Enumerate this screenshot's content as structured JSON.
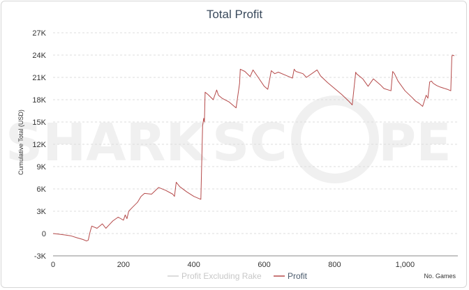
{
  "chart_data": {
    "type": "line",
    "title": "Total Profit",
    "xlabel": "No. Games",
    "ylabel": "Cumulative Total (USD)",
    "xlim": [
      0,
      1150
    ],
    "ylim": [
      -3000,
      27000
    ],
    "x_ticks": [
      0,
      200,
      400,
      600,
      800,
      1000
    ],
    "x_tick_labels": [
      "0",
      "200",
      "400",
      "600",
      "800",
      "1,000"
    ],
    "y_ticks": [
      -3000,
      0,
      3000,
      6000,
      9000,
      12000,
      15000,
      18000,
      21000,
      24000,
      27000
    ],
    "y_tick_labels": [
      "-3K",
      "0",
      "3K",
      "6K",
      "9K",
      "12K",
      "15K",
      "18K",
      "21K",
      "24K",
      "27K"
    ],
    "grid": true,
    "legend_position": "bottom-center",
    "watermark": "SHARKSCOPE",
    "series": [
      {
        "name": "Profit Excluding Rake",
        "color": "#d0d0d0",
        "x": [],
        "y": []
      },
      {
        "name": "Profit",
        "color": "#b54a4a",
        "x": [
          0,
          20,
          35,
          50,
          70,
          85,
          95,
          100,
          105,
          110,
          125,
          140,
          150,
          160,
          170,
          185,
          200,
          205,
          210,
          215,
          225,
          240,
          250,
          260,
          280,
          300,
          320,
          340,
          345,
          350,
          360,
          380,
          400,
          415,
          420,
          425,
          428,
          430,
          432,
          440,
          455,
          465,
          470,
          480,
          500,
          515,
          520,
          530,
          532,
          545,
          560,
          568,
          580,
          600,
          610,
          620,
          630,
          640,
          660,
          680,
          685,
          690,
          710,
          720,
          750,
          760,
          780,
          800,
          820,
          840,
          850,
          860,
          862,
          880,
          895,
          910,
          930,
          940,
          960,
          965,
          970,
          980,
          1000,
          1020,
          1030,
          1040,
          1050,
          1060,
          1065,
          1070,
          1075,
          1080,
          1090,
          1100,
          1120,
          1130,
          1133,
          1135,
          1140
        ],
        "y": [
          0,
          -100,
          -200,
          -300,
          -600,
          -800,
          -1000,
          -900,
          200,
          1000,
          700,
          1300,
          700,
          1200,
          1700,
          2200,
          1800,
          2500,
          2000,
          3000,
          3500,
          4200,
          5000,
          5400,
          5300,
          6200,
          5800,
          5300,
          5000,
          6900,
          6300,
          5600,
          5000,
          4700,
          4600,
          14500,
          15500,
          15000,
          19000,
          18700,
          18000,
          19300,
          18600,
          18200,
          17700,
          17100,
          16900,
          20200,
          22100,
          21800,
          21100,
          22000,
          21200,
          19800,
          19400,
          21900,
          21500,
          21700,
          21300,
          20900,
          22100,
          21800,
          21500,
          21000,
          22000,
          21200,
          20300,
          19500,
          18700,
          17800,
          17300,
          21700,
          21500,
          20800,
          19800,
          20800,
          20000,
          19500,
          19200,
          21800,
          21500,
          20500,
          19200,
          18300,
          17800,
          17500,
          17100,
          18600,
          18200,
          20400,
          20500,
          20200,
          19900,
          19700,
          19400,
          19200,
          23800,
          24000,
          23900
        ]
      }
    ]
  }
}
